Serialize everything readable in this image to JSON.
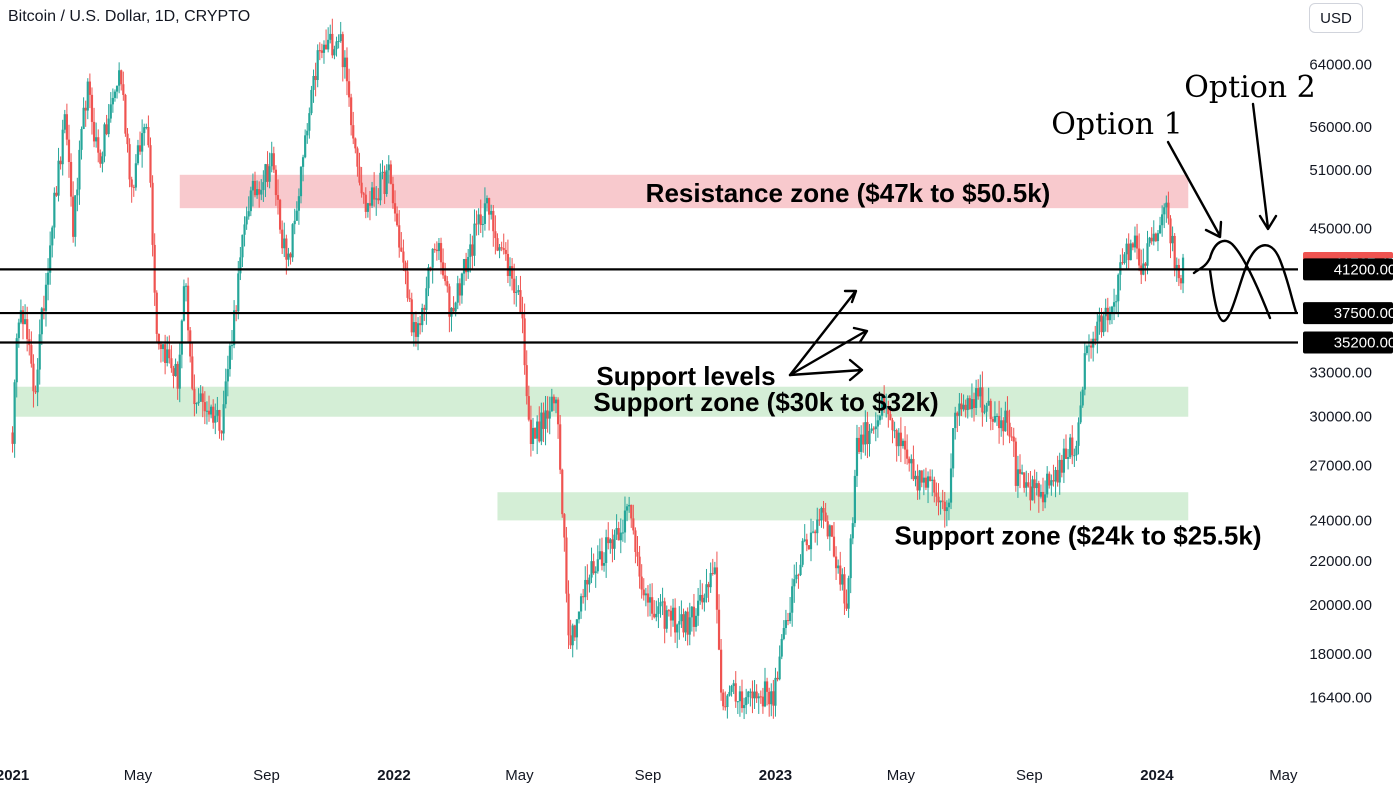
{
  "header": {
    "title": "Bitcoin / U.S. Dollar, 1D, CRYPTO",
    "currency_button": "USD"
  },
  "chart_data": {
    "type": "candlestick",
    "xlabel": "",
    "ylabel": "",
    "xlim": [
      "2020-12-20",
      "2024-05-15"
    ],
    "ylim": [
      14800,
      72000
    ],
    "y_scale": "log",
    "grid": false,
    "x_ticks": [
      {
        "date": "2021-01-01",
        "label": "2021",
        "bold": true
      },
      {
        "date": "2021-05-01",
        "label": "May",
        "bold": false
      },
      {
        "date": "2021-09-01",
        "label": "Sep",
        "bold": false
      },
      {
        "date": "2022-01-01",
        "label": "2022",
        "bold": true
      },
      {
        "date": "2022-05-01",
        "label": "May",
        "bold": false
      },
      {
        "date": "2022-09-01",
        "label": "Sep",
        "bold": false
      },
      {
        "date": "2023-01-01",
        "label": "2023",
        "bold": true
      },
      {
        "date": "2023-05-01",
        "label": "May",
        "bold": false
      },
      {
        "date": "2023-09-01",
        "label": "Sep",
        "bold": false
      },
      {
        "date": "2024-01-01",
        "label": "2024",
        "bold": true
      },
      {
        "date": "2024-05-01",
        "label": "May",
        "bold": false
      }
    ],
    "y_ticks": [
      {
        "value": 64000,
        "label": "64000.00"
      },
      {
        "value": 56000,
        "label": "56000.00"
      },
      {
        "value": 51000,
        "label": "51000.00"
      },
      {
        "value": 45000,
        "label": "45000.00"
      },
      {
        "value": 33000,
        "label": "33000.00"
      },
      {
        "value": 30000,
        "label": "30000.00"
      },
      {
        "value": 27000,
        "label": "27000.00"
      },
      {
        "value": 24000,
        "label": "24000.00"
      },
      {
        "value": 22000,
        "label": "22000.00"
      },
      {
        "value": 20000,
        "label": "20000.00"
      },
      {
        "value": 18000,
        "label": "18000.00"
      },
      {
        "value": 16400,
        "label": "16400.00"
      }
    ],
    "price_badges": [
      {
        "value": 41767.47,
        "label": "41767.47",
        "color": "#ef5350"
      },
      {
        "value": 41200,
        "label": "41200.00",
        "color": "#000000"
      },
      {
        "value": 37500,
        "label": "37500.00",
        "color": "#000000"
      },
      {
        "value": 35200,
        "label": "35200.00",
        "color": "#000000"
      }
    ],
    "support_levels": [
      41200,
      37500,
      35200
    ],
    "zones": [
      {
        "from_date": "2021-06-10",
        "to_date": "2024-01-31",
        "low": 47000,
        "high": 50500,
        "color": "#f8c9cd",
        "label": "Resistance zone ($47k to $50.5k)"
      },
      {
        "from_date": "2021-01-02",
        "to_date": "2024-01-31",
        "low": 30000,
        "high": 32000,
        "color": "#d4eed6",
        "label": "Support zone ($30k to $32k)"
      },
      {
        "from_date": "2022-04-10",
        "to_date": "2024-01-31",
        "low": 24000,
        "high": 25500,
        "color": "#d4eed6",
        "label": "Support zone ($24k to $25.5k)"
      }
    ],
    "annotations": [
      {
        "text": "Support levels"
      },
      {
        "text": "Option 1"
      },
      {
        "text": "Option 2"
      }
    ],
    "colors": {
      "up": "#26a69a",
      "down": "#ef5350"
    },
    "anchors": [
      [
        "2021-01-01",
        29000
      ],
      [
        "2021-01-08",
        39500
      ],
      [
        "2021-01-22",
        31500
      ],
      [
        "2021-02-08",
        46000
      ],
      [
        "2021-02-21",
        57000
      ],
      [
        "2021-02-28",
        45000
      ],
      [
        "2021-03-13",
        61000
      ],
      [
        "2021-03-25",
        52000
      ],
      [
        "2021-04-14",
        63500
      ],
      [
        "2021-04-25",
        49000
      ],
      [
        "2021-05-10",
        58000
      ],
      [
        "2021-05-19",
        36000
      ],
      [
        "2021-06-08",
        32500
      ],
      [
        "2021-06-15",
        40000
      ],
      [
        "2021-06-22",
        31500
      ],
      [
        "2021-07-20",
        29800
      ],
      [
        "2021-08-14",
        47500
      ],
      [
        "2021-09-06",
        52000
      ],
      [
        "2021-09-21",
        41000
      ],
      [
        "2021-10-20",
        65000
      ],
      [
        "2021-11-10",
        68500
      ],
      [
        "2021-12-04",
        47000
      ],
      [
        "2021-12-27",
        50500
      ],
      [
        "2022-01-22",
        35000
      ],
      [
        "2022-02-10",
        44000
      ],
      [
        "2022-02-24",
        37500
      ],
      [
        "2022-03-29",
        47500
      ],
      [
        "2022-05-02",
        38500
      ],
      [
        "2022-05-12",
        28500
      ],
      [
        "2022-06-06",
        31000
      ],
      [
        "2022-06-18",
        18500
      ],
      [
        "2022-07-08",
        21500
      ],
      [
        "2022-08-14",
        24500
      ],
      [
        "2022-09-01",
        19800
      ],
      [
        "2022-10-10",
        19200
      ],
      [
        "2022-11-05",
        21300
      ],
      [
        "2022-11-10",
        16400
      ],
      [
        "2022-12-31",
        16550
      ],
      [
        "2023-01-20",
        21500
      ],
      [
        "2023-02-16",
        24800
      ],
      [
        "2023-03-10",
        20000
      ],
      [
        "2023-03-20",
        28200
      ],
      [
        "2023-04-14",
        30500
      ],
      [
        "2023-05-12",
        26500
      ],
      [
        "2023-06-15",
        25000
      ],
      [
        "2023-06-23",
        30800
      ],
      [
        "2023-07-14",
        31500
      ],
      [
        "2023-08-16",
        29200
      ],
      [
        "2023-08-18",
        26200
      ],
      [
        "2023-09-11",
        25200
      ],
      [
        "2023-10-16",
        28500
      ],
      [
        "2023-10-25",
        34500
      ],
      [
        "2023-11-15",
        37500
      ],
      [
        "2023-12-08",
        44000
      ],
      [
        "2023-12-18",
        41500
      ],
      [
        "2024-01-03",
        45000
      ],
      [
        "2024-01-11",
        46500
      ],
      [
        "2024-01-22",
        39500
      ],
      [
        "2024-01-26",
        41767
      ]
    ]
  }
}
